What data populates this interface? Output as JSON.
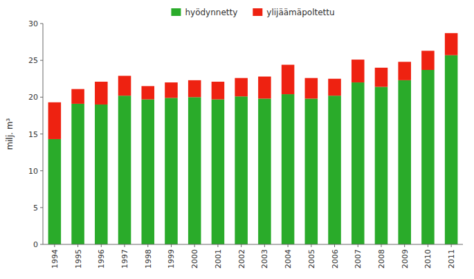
{
  "chart_data": {
    "type": "bar",
    "stacked": true,
    "categories": [
      "1994",
      "1995",
      "1996",
      "1997",
      "1998",
      "1999",
      "2000",
      "2001",
      "2002",
      "2003",
      "2004",
      "2005",
      "2006",
      "2007",
      "2008",
      "2009",
      "2010",
      "2011"
    ],
    "series": [
      {
        "name": "hyödynnetty",
        "color": "#2aab2a",
        "values": [
          14.3,
          19.1,
          19.0,
          20.2,
          19.7,
          19.9,
          20.0,
          19.7,
          20.1,
          19.8,
          20.4,
          19.8,
          20.2,
          22.0,
          21.4,
          22.3,
          23.7,
          25.7
        ]
      },
      {
        "name": "ylijäämäpoltettu",
        "color": "#ee2211",
        "values": [
          5.0,
          2.0,
          3.1,
          2.7,
          1.8,
          2.1,
          2.3,
          2.4,
          2.5,
          3.0,
          4.0,
          2.8,
          2.3,
          3.1,
          2.6,
          2.5,
          2.6,
          3.0
        ]
      }
    ],
    "ylabel": "milj. m³",
    "ylim": [
      0,
      30
    ],
    "yticks": [
      0,
      5,
      10,
      15,
      20,
      25,
      30
    ],
    "grid": false,
    "legend": "upper center"
  }
}
